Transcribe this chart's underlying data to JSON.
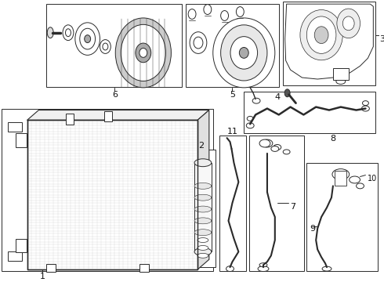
{
  "bg_color": "#ffffff",
  "line_color": "#2a2a2a",
  "hatch_color": "#bbbbbb",
  "label_color": "#111111",
  "fig_w": 4.9,
  "fig_h": 3.6,
  "dpi": 100
}
